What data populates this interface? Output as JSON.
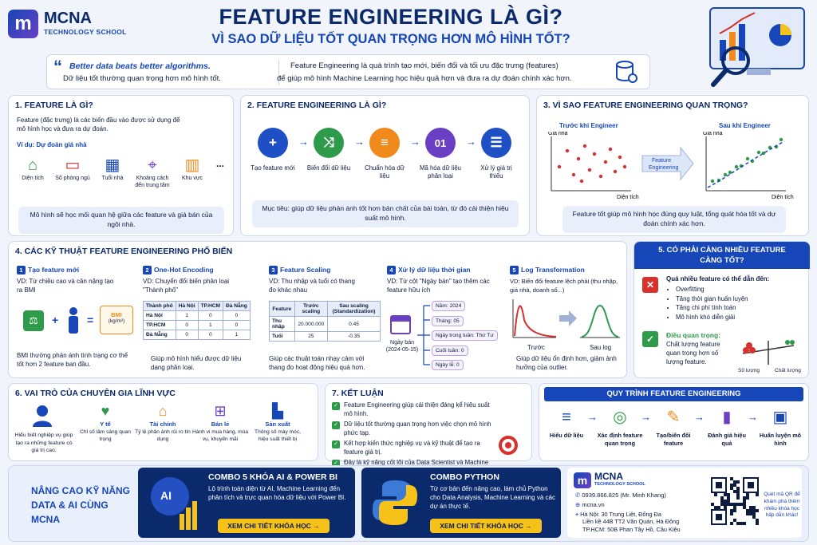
{
  "brand": {
    "name": "MCNA",
    "sub": "TECHNOLOGY SCHOOL"
  },
  "header": {
    "title": "FEATURE ENGINEERING LÀ GÌ?",
    "subtitle": "VÌ SAO DỮ LIỆU TỐT QUAN TRỌNG HƠN MÔ HÌNH TỐT?"
  },
  "quote": {
    "line1": "Better data beats better algorithms.",
    "line2": "Dữ liệu tốt thường quan trọng hơn mô hình tốt.",
    "desc1": "Feature Engineering là quá trình tạo mới, biến đổi và tối ưu đặc trưng (features)",
    "desc2": "để giúp mô hình Machine Learning học hiệu quả hơn và đưa ra dự đoán chính xác hơn."
  },
  "s1": {
    "title": "1. FEATURE LÀ GÌ?",
    "desc": "Feature (đặc trưng) là các biến đầu vào được sử dụng để mô hình học và đưa ra dự đoán.",
    "example": "Ví dụ: Dự đoán giá nhà",
    "items": [
      {
        "label": "Diện tích",
        "icon": "house-icon"
      },
      {
        "label": "Số phòng ngủ",
        "icon": "bed-icon"
      },
      {
        "label": "Tuổi nhà",
        "icon": "calendar-icon"
      },
      {
        "label": "Khoảng cách đến trung tâm",
        "icon": "location-icon"
      },
      {
        "label": "Khu vực",
        "icon": "shop-icon"
      }
    ],
    "more": "...",
    "note": "Mô hình sẽ học mối quan hệ giữa các feature và giá bán của ngôi nhà."
  },
  "s2": {
    "title": "2. FEATURE ENGINEERING LÀ GÌ?",
    "steps": [
      {
        "label": "Tạo feature mới",
        "glyph": "+",
        "color": "#1f4fc4"
      },
      {
        "label": "Biến đổi dữ liệu",
        "glyph": "⤨",
        "color": "#2e9b4a"
      },
      {
        "label": "Chuẩn hóa dữ liệu",
        "glyph": "≡",
        "color": "#f08a1c"
      },
      {
        "label": "Mã hóa dữ liệu phân loại",
        "glyph": "01",
        "color": "#6a3fc4"
      },
      {
        "label": "Xử lý giá trị thiếu",
        "glyph": "☰",
        "color": "#1f4fc4"
      }
    ],
    "note": "Mục tiêu: giúp dữ liệu phản ánh tốt hơn bản chất của bài toán, từ đó cải thiện hiệu suất mô hình."
  },
  "s3": {
    "title": "3. VÌ SAO FEATURE ENGINEERING QUAN TRỌNG?",
    "before": "Trước khi Engineer",
    "after": "Sau khi Engineer",
    "ylabel": "Giá nhà",
    "xlabel": "Diện tích",
    "arrow": "Feature Engineering",
    "note": "Feature tốt giúp mô hình học đúng quy luật, tổng quát hóa tốt và dự đoán chính xác hơn."
  },
  "s4": {
    "title": "4. CÁC KỸ THUẬT FEATURE ENGINEERING PHỔ BIẾN",
    "t1": {
      "num": "1",
      "name": "Tạo feature mới",
      "vd": "VD: Từ chiều cao và cân nặng tạo ra BMI",
      "bmi": "BMI",
      "bmi_unit": "(kg/m²)",
      "foot": "BMI thường phản ánh tình trạng cơ thể tốt hơn 2 feature ban đầu."
    },
    "t2": {
      "num": "2",
      "name": "One-Hot Encoding",
      "vd": "VD: Chuyển đổi biến phân loại \"Thành phố\"",
      "headers": [
        "Thành phố",
        "Hà Nội",
        "TP.HCM",
        "Đà Nẵng"
      ],
      "rows": [
        [
          "Hà Nội",
          "1",
          "0",
          "0"
        ],
        [
          "TP.HCM",
          "0",
          "1",
          "0"
        ],
        [
          "Đà Nẵng",
          "0",
          "0",
          "1"
        ]
      ],
      "foot": "Giúp mô hình hiểu được dữ liệu dạng phân loại."
    },
    "t3": {
      "num": "3",
      "name": "Feature Scaling",
      "vd": "VD: Thu nhập và tuổi có thang đo khác nhau",
      "headers": [
        "Feature",
        "Trước scaling",
        "Sau scaling (Standardization)"
      ],
      "rows": [
        [
          "Thu nhập",
          "20.000.000",
          "0.45"
        ],
        [
          "Tuổi",
          "25",
          "-0.35"
        ]
      ],
      "foot": "Giúp các thuật toán nhạy cảm với thang đo hoạt động hiệu quả hơn."
    },
    "t4": {
      "num": "4",
      "name": "Xử lý dữ liệu thời gian",
      "vd": "VD: Từ cột \"Ngày bán\" tạo thêm các feature hữu ích",
      "date_label": "Ngày bán (2024-05-15)",
      "parts": [
        "Năm: 2024",
        "Tháng: 05",
        "Ngày trong tuần: Thứ Tư",
        "Cuối tuần: 0",
        "Ngày lễ: 0"
      ]
    },
    "t5": {
      "num": "5",
      "name": "Log Transformation",
      "vd": "VD: Biến đổi feature lệch phải (thu nhập, giá nhà, doanh số...)",
      "before": "Trước",
      "after": "Sau log",
      "foot": "Giúp dữ liệu ổn định hơn, giảm ảnh hưởng của outlier."
    }
  },
  "s5": {
    "title": "5. CÓ PHẢI CÀNG NHIỀU FEATURE CÀNG TỐT?",
    "bad_head": "Quá nhiều feature có thể dẫn đến:",
    "bad_items": [
      "Overfitting",
      "Tăng thời gian huấn luyện",
      "Tăng chi phí tính toán",
      "Mô hình khó diễn giải"
    ],
    "good_head": "Điều quan trọng:",
    "good_text": "Chất lượng feature quan trọng hơn số lượng feature.",
    "scale_left": "Số lượng",
    "scale_right": "Chất lượng"
  },
  "s6": {
    "title": "6. VAI TRÒ CỦA CHUYÊN GIA LĨNH VỰC",
    "lead": "Hiểu biết nghiệp vụ giúp tạo ra những feature có giá trị cao.",
    "items": [
      {
        "name": "Y tế",
        "desc": "Chỉ số lâm sàng quan trọng",
        "icon": "heart-icon"
      },
      {
        "name": "Tài chính",
        "desc": "Tỷ lệ phản ánh rủi ro tín dụng",
        "icon": "bank-icon"
      },
      {
        "name": "Bán lẻ",
        "desc": "Hành vi mua hàng, mùa vụ, khuyến mãi",
        "icon": "cart-icon"
      },
      {
        "name": "Sản xuất",
        "desc": "Thông số máy móc, hiệu suất thiết bị",
        "icon": "factory-icon"
      }
    ]
  },
  "s7": {
    "title": "7. KẾT LUẬN",
    "items": [
      "Feature Engineering giúp cải thiện đáng kể hiệu suất mô hình.",
      "Dữ liệu tốt thường quan trọng hơn việc chọn mô hình phức tạp.",
      "Kết hợp kiến thức nghiệp vụ và kỹ thuật để tạo ra feature giá trị.",
      "Đây là kỹ năng cốt lõi của Data Scientist và Machine Learning Engineer."
    ]
  },
  "s8": {
    "title": "QUY TRÌNH FEATURE ENGINEERING",
    "steps": [
      {
        "label": "Hiểu dữ liệu",
        "icon": "database-icon"
      },
      {
        "label": "Xác định feature quan trọng",
        "icon": "target-icon"
      },
      {
        "label": "Tạo/biến đổi feature",
        "icon": "tools-icon"
      },
      {
        "label": "Đánh giá hiệu quả",
        "icon": "chart-icon"
      },
      {
        "label": "Huấn luyện mô hình",
        "icon": "cube-icon"
      }
    ]
  },
  "footer": {
    "promo": "NÂNG CAO KỸ NĂNG DATA & AI CÙNG MCNA",
    "c1_title": "COMBO 5 KHÓA AI & POWER BI",
    "c1_desc": "Lộ trình toàn diện từ AI, Machine Learning đến phân tích và trực quan hóa dữ liệu với Power BI.",
    "c1_btn": "XEM CHI TIẾT KHÓA HỌC →",
    "c2_title": "COMBO PYTHON",
    "c2_desc": "Từ cơ bản đến nâng cao, làm chủ Python cho Data Analysis, Machine Learning và các dự án thực tế.",
    "c2_btn": "XEM CHI TIẾT KHÓA HỌC →",
    "phone": "0939.866.825 (Mr. Minh Khang)",
    "web": "mcna.vn",
    "addr1": "Hà Nội: 30 Trung Liệt, Đống Đa",
    "addr2": "Liền kề 44B TT2 Văn Quán, Hà Đông",
    "addr3": "TP.HCM: 50B Phan Tây Hồ, Cầu Kiệu",
    "qr_note": "Quét mã QR để khám phá thêm nhiều khóa học hấp dẫn khác!"
  },
  "colors": {
    "navy": "#0b2a6b",
    "blue": "#1646b8",
    "yellow": "#f6c21a",
    "green": "#2e9b4a",
    "red": "#d9302c"
  }
}
